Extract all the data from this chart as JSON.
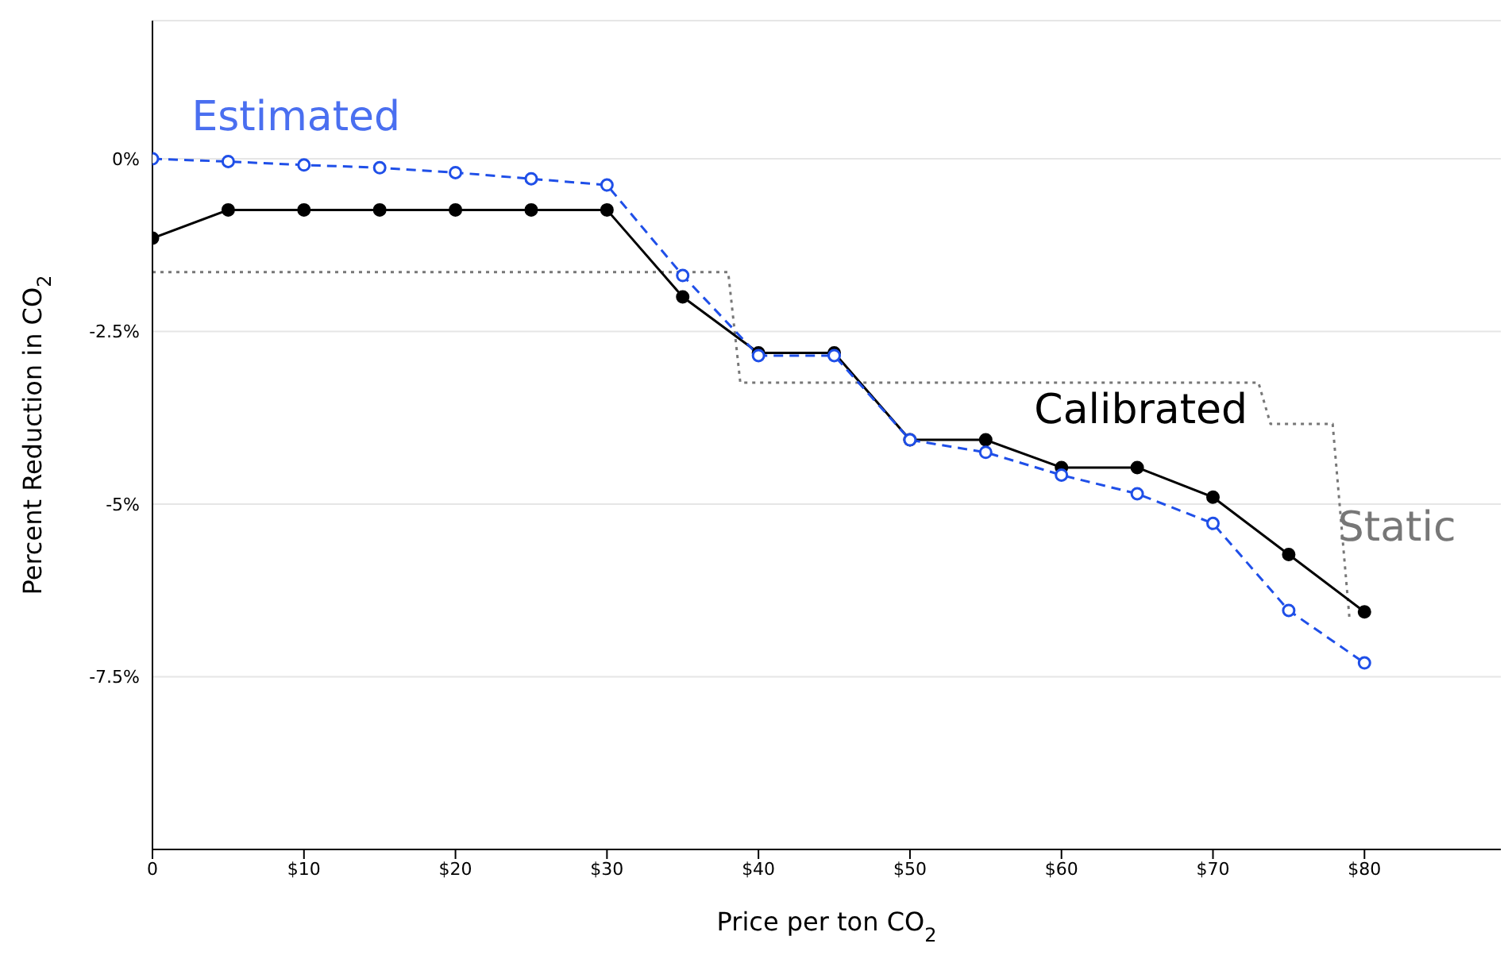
{
  "chart_data": {
    "type": "line",
    "xlabel": "Price per ton CO$_{2}$",
    "ylabel": "Percent Reduction in CO$_{2}$",
    "xlim": [
      0,
      89
    ],
    "ylim": [
      -10,
      2
    ],
    "xticks": [
      {
        "value": 0,
        "label": "0"
      },
      {
        "value": 10,
        "label": "$10"
      },
      {
        "value": 20,
        "label": "$20"
      },
      {
        "value": 30,
        "label": "$30"
      },
      {
        "value": 40,
        "label": "$40"
      },
      {
        "value": 50,
        "label": "$50"
      },
      {
        "value": 60,
        "label": "$60"
      },
      {
        "value": 70,
        "label": "$70"
      },
      {
        "value": 80,
        "label": "$80"
      }
    ],
    "yticks": [
      {
        "value": 0,
        "label": "0%"
      },
      {
        "value": -2.5,
        "label": "-2.5%"
      },
      {
        "value": -5,
        "label": "-5%"
      },
      {
        "value": -7.5,
        "label": "-7.5%"
      }
    ],
    "grid": "y",
    "legend": false,
    "series": [
      {
        "name": "Static",
        "color": "#777777",
        "line_style": "dotted",
        "marker": "none",
        "x": [
          0,
          38,
          38.8,
          73,
          73.8,
          77.9,
          79
        ],
        "values": [
          -1.64,
          -1.64,
          -3.24,
          -3.24,
          -3.84,
          -3.84,
          -6.63
        ]
      },
      {
        "name": "Calibrated",
        "color": "#000000",
        "line_style": "solid",
        "marker": "circle",
        "x": [
          0,
          5,
          10,
          15,
          20,
          25,
          30,
          35,
          40,
          45,
          50,
          55,
          60,
          65,
          70,
          75,
          80
        ],
        "values": [
          -1.15,
          -0.74,
          -0.74,
          -0.74,
          -0.74,
          -0.74,
          -0.74,
          -2.0,
          -2.81,
          -2.81,
          -4.07,
          -4.07,
          -4.47,
          -4.47,
          -4.9,
          -5.73,
          -6.56
        ]
      },
      {
        "name": "Estimated",
        "color": "#1f4fe8",
        "line_style": "dashed",
        "marker": "circle",
        "x": [
          0,
          5,
          10,
          15,
          20,
          25,
          30,
          35,
          40,
          45,
          50,
          55,
          60,
          65,
          70,
          75,
          80
        ],
        "values": [
          0,
          -0.04,
          -0.09,
          -0.13,
          -0.2,
          -0.29,
          -0.38,
          -1.69,
          -2.85,
          -2.85,
          -4.07,
          -4.25,
          -4.58,
          -4.85,
          -5.28,
          -6.54,
          -7.3
        ]
      }
    ]
  }
}
